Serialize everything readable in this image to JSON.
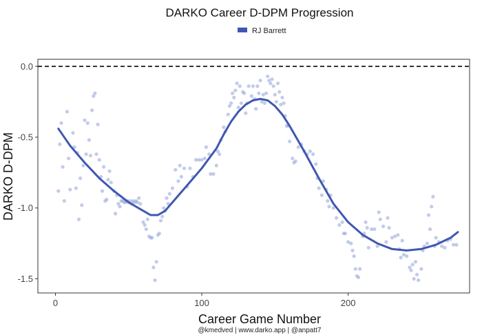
{
  "chart_data": {
    "type": "scatter",
    "title": "DARKO Career D-DPM Progression",
    "xlabel": "Career Game Number",
    "ylabel": "DARKO D-DPM",
    "caption": "@kmedved | www.darko.app | @anpatt7",
    "xlim": [
      -12,
      283
    ],
    "ylim": [
      -1.6,
      0.05
    ],
    "x_ticks": [
      0,
      100,
      200
    ],
    "y_ticks": [
      0.0,
      -0.5,
      -1.0,
      -1.5
    ],
    "y_tick_labels": [
      "0.0",
      "-0.5",
      "-1.0",
      "-1.5"
    ],
    "reference_line": {
      "y": 0.0,
      "style": "dashed"
    },
    "legend": {
      "position": "top"
    },
    "grid": false,
    "colors": {
      "series": "#3f57b0",
      "points": "#9aa8dc",
      "reference": "#000000"
    },
    "series": [
      {
        "name": "RJ Barrett",
        "smooth": [
          [
            2,
            -0.44
          ],
          [
            10,
            -0.56
          ],
          [
            20,
            -0.68
          ],
          [
            30,
            -0.79
          ],
          [
            40,
            -0.88
          ],
          [
            50,
            -0.96
          ],
          [
            60,
            -1.02
          ],
          [
            65,
            -1.05
          ],
          [
            70,
            -1.05
          ],
          [
            75,
            -1.02
          ],
          [
            80,
            -0.96
          ],
          [
            90,
            -0.84
          ],
          [
            100,
            -0.72
          ],
          [
            110,
            -0.58
          ],
          [
            115,
            -0.48
          ],
          [
            120,
            -0.39
          ],
          [
            125,
            -0.32
          ],
          [
            130,
            -0.27
          ],
          [
            135,
            -0.24
          ],
          [
            140,
            -0.23
          ],
          [
            145,
            -0.24
          ],
          [
            150,
            -0.28
          ],
          [
            155,
            -0.34
          ],
          [
            160,
            -0.42
          ],
          [
            170,
            -0.6
          ],
          [
            180,
            -0.79
          ],
          [
            190,
            -0.97
          ],
          [
            200,
            -1.1
          ],
          [
            210,
            -1.19
          ],
          [
            220,
            -1.25
          ],
          [
            230,
            -1.29
          ],
          [
            240,
            -1.3
          ],
          [
            250,
            -1.29
          ],
          [
            260,
            -1.26
          ],
          [
            270,
            -1.21
          ],
          [
            275,
            -1.17
          ]
        ],
        "points": [
          [
            2,
            -0.88
          ],
          [
            3,
            -0.55
          ],
          [
            4,
            -0.4
          ],
          [
            5,
            -0.71
          ],
          [
            6,
            -0.95
          ],
          [
            8,
            -0.32
          ],
          [
            9,
            -0.65
          ],
          [
            10,
            -0.87
          ],
          [
            12,
            -0.47
          ],
          [
            13,
            -0.57
          ],
          [
            14,
            -0.86
          ],
          [
            15,
            -0.61
          ],
          [
            16,
            -1.08
          ],
          [
            17,
            -0.79
          ],
          [
            18,
            -0.98
          ],
          [
            19,
            -0.7
          ],
          [
            20,
            -0.38
          ],
          [
            21,
            -0.62
          ],
          [
            22,
            -0.4
          ],
          [
            23,
            -0.52
          ],
          [
            24,
            -0.63
          ],
          [
            25,
            -0.31
          ],
          [
            26,
            -0.21
          ],
          [
            27,
            -0.19
          ],
          [
            28,
            -0.62
          ],
          [
            29,
            -0.41
          ],
          [
            30,
            -0.66
          ],
          [
            31,
            -0.78
          ],
          [
            32,
            -0.88
          ],
          [
            33,
            -0.71
          ],
          [
            34,
            -0.95
          ],
          [
            35,
            -0.94
          ],
          [
            36,
            -0.8
          ],
          [
            37,
            -0.74
          ],
          [
            38,
            -0.82
          ],
          [
            40,
            -0.88
          ],
          [
            41,
            -1.04
          ],
          [
            42,
            -0.91
          ],
          [
            43,
            -0.97
          ],
          [
            44,
            -0.99
          ],
          [
            45,
            -0.95
          ],
          [
            46,
            -0.95
          ],
          [
            47,
            -0.96
          ],
          [
            48,
            -0.96
          ],
          [
            49,
            -0.95
          ],
          [
            50,
            -0.96
          ],
          [
            51,
            -0.95
          ],
          [
            52,
            -0.97
          ],
          [
            53,
            -0.95
          ],
          [
            54,
            -0.96
          ],
          [
            55,
            -0.95
          ],
          [
            56,
            -0.96
          ],
          [
            57,
            -0.93
          ],
          [
            58,
            -0.97
          ],
          [
            60,
            -1.1
          ],
          [
            61,
            -1.12
          ],
          [
            62,
            -1.15
          ],
          [
            63,
            -1.08
          ],
          [
            64,
            -1.2
          ],
          [
            65,
            -1.21
          ],
          [
            66,
            -1.21
          ],
          [
            67,
            -1.42
          ],
          [
            68,
            -1.51
          ],
          [
            69,
            -1.38
          ],
          [
            70,
            -1.19
          ],
          [
            71,
            -1.18
          ],
          [
            72,
            -1.09
          ],
          [
            73,
            -1.06
          ],
          [
            74,
            -1.0
          ],
          [
            75,
            -1.02
          ],
          [
            76,
            -0.93
          ],
          [
            77,
            -0.97
          ],
          [
            78,
            -0.9
          ],
          [
            80,
            -0.86
          ],
          [
            82,
            -0.73
          ],
          [
            84,
            -0.81
          ],
          [
            85,
            -0.7
          ],
          [
            86,
            -0.78
          ],
          [
            88,
            -0.72
          ],
          [
            90,
            -0.85
          ],
          [
            92,
            -0.72
          ],
          [
            94,
            -0.78
          ],
          [
            96,
            -0.66
          ],
          [
            98,
            -0.66
          ],
          [
            100,
            -0.66
          ],
          [
            102,
            -0.65
          ],
          [
            103,
            -0.57
          ],
          [
            105,
            -0.62
          ],
          [
            106,
            -0.76
          ],
          [
            108,
            -0.76
          ],
          [
            110,
            -0.7
          ],
          [
            111,
            -0.6
          ],
          [
            112,
            -0.62
          ],
          [
            113,
            -0.52
          ],
          [
            115,
            -0.43
          ],
          [
            116,
            -0.46
          ],
          [
            118,
            -0.34
          ],
          [
            119,
            -0.28
          ],
          [
            120,
            -0.26
          ],
          [
            121,
            -0.19
          ],
          [
            122,
            -0.22
          ],
          [
            123,
            -0.17
          ],
          [
            124,
            -0.12
          ],
          [
            125,
            -0.29
          ],
          [
            126,
            -0.14
          ],
          [
            127,
            -0.26
          ],
          [
            128,
            -0.18
          ],
          [
            129,
            -0.19
          ],
          [
            130,
            -0.33
          ],
          [
            131,
            -0.26
          ],
          [
            132,
            -0.14
          ],
          [
            134,
            -0.21
          ],
          [
            135,
            -0.14
          ],
          [
            136,
            -0.23
          ],
          [
            137,
            -0.3
          ],
          [
            138,
            -0.14
          ],
          [
            139,
            -0.19
          ],
          [
            140,
            -0.1
          ],
          [
            141,
            -0.25
          ],
          [
            142,
            -0.2
          ],
          [
            143,
            -0.26
          ],
          [
            144,
            -0.19
          ],
          [
            145,
            -0.07
          ],
          [
            146,
            -0.1
          ],
          [
            147,
            -0.12
          ],
          [
            148,
            -0.09
          ],
          [
            149,
            -0.14
          ],
          [
            150,
            -0.2
          ],
          [
            151,
            -0.25
          ],
          [
            152,
            -0.12
          ],
          [
            153,
            -0.18
          ],
          [
            154,
            -0.27
          ],
          [
            155,
            -0.22
          ],
          [
            156,
            -0.26
          ],
          [
            157,
            -0.35
          ],
          [
            158,
            -0.42
          ],
          [
            159,
            -0.42
          ],
          [
            160,
            -0.53
          ],
          [
            162,
            -0.65
          ],
          [
            163,
            -0.68
          ],
          [
            164,
            -0.67
          ],
          [
            166,
            -0.57
          ],
          [
            168,
            -0.55
          ],
          [
            170,
            -0.6
          ],
          [
            172,
            -0.62
          ],
          [
            174,
            -0.6
          ],
          [
            176,
            -0.62
          ],
          [
            178,
            -0.69
          ],
          [
            179,
            -0.79
          ],
          [
            180,
            -0.86
          ],
          [
            182,
            -0.91
          ],
          [
            183,
            -0.81
          ],
          [
            185,
            -0.87
          ],
          [
            186,
            -0.95
          ],
          [
            187,
            -0.99
          ],
          [
            188,
            -0.91
          ],
          [
            190,
            -1.0
          ],
          [
            192,
            -1.07
          ],
          [
            194,
            -1.12
          ],
          [
            196,
            -1.1
          ],
          [
            197,
            -1.18
          ],
          [
            198,
            -1.18
          ],
          [
            200,
            -1.24
          ],
          [
            202,
            -1.25
          ],
          [
            203,
            -1.3
          ],
          [
            204,
            -1.34
          ],
          [
            205,
            -1.43
          ],
          [
            206,
            -1.48
          ],
          [
            207,
            -1.49
          ],
          [
            208,
            -1.43
          ],
          [
            210,
            -1.2
          ],
          [
            211,
            -1.18
          ],
          [
            212,
            -1.1
          ],
          [
            213,
            -1.14
          ],
          [
            214,
            -1.28
          ],
          [
            216,
            -1.15
          ],
          [
            218,
            -1.15
          ],
          [
            220,
            -1.27
          ],
          [
            221,
            -1.03
          ],
          [
            222,
            -1.08
          ],
          [
            224,
            -1.13
          ],
          [
            226,
            -1.24
          ],
          [
            227,
            -1.07
          ],
          [
            228,
            -1.14
          ],
          [
            230,
            -1.21
          ],
          [
            232,
            -1.2
          ],
          [
            234,
            -1.19
          ],
          [
            235,
            -1.29
          ],
          [
            236,
            -1.35
          ],
          [
            237,
            -1.23
          ],
          [
            238,
            -1.33
          ],
          [
            240,
            -1.34
          ],
          [
            242,
            -1.42
          ],
          [
            243,
            -1.44
          ],
          [
            244,
            -1.4
          ],
          [
            245,
            -1.5
          ],
          [
            246,
            -1.38
          ],
          [
            247,
            -1.47
          ],
          [
            248,
            -1.51
          ],
          [
            250,
            -1.43
          ],
          [
            251,
            -1.3
          ],
          [
            252,
            -1.27
          ],
          [
            254,
            -1.25
          ],
          [
            255,
            -1.05
          ],
          [
            256,
            -1.15
          ],
          [
            257,
            -0.99
          ],
          [
            258,
            -0.92
          ],
          [
            259,
            -1.27
          ],
          [
            260,
            -1.21
          ],
          [
            262,
            -1.24
          ],
          [
            264,
            -1.27
          ],
          [
            266,
            -1.28
          ],
          [
            268,
            -1.23
          ],
          [
            270,
            -1.22
          ],
          [
            272,
            -1.26
          ],
          [
            274,
            -1.26
          ]
        ]
      }
    ]
  }
}
